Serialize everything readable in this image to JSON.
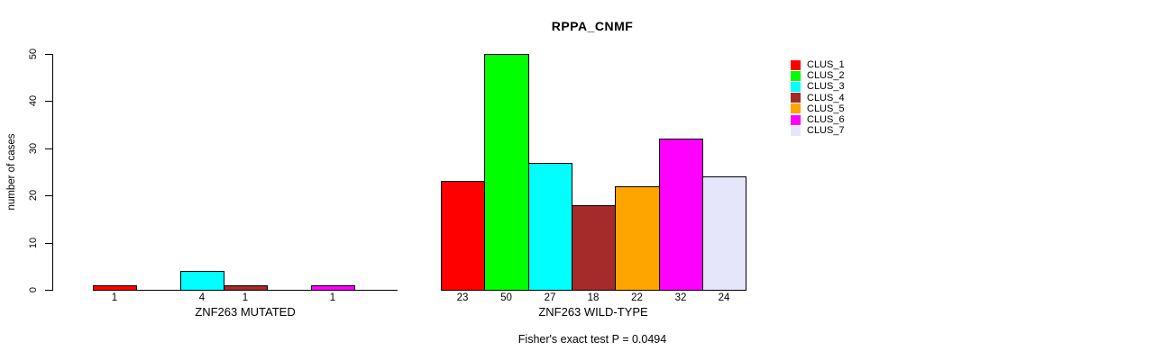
{
  "chart_data": {
    "type": "bar",
    "title": "RPPA_CNMF",
    "ylabel": "number of cases",
    "ylim": [
      0,
      50
    ],
    "yticks": [
      0,
      10,
      20,
      30,
      40,
      50
    ],
    "grid": false,
    "legend_position": "right-top",
    "clusters": [
      {
        "name": "CLUS_1",
        "color": "#FF0000"
      },
      {
        "name": "CLUS_2",
        "color": "#00FF00"
      },
      {
        "name": "CLUS_3",
        "color": "#00FFFF"
      },
      {
        "name": "CLUS_4",
        "color": "#A52A2A"
      },
      {
        "name": "CLUS_5",
        "color": "#FFA500"
      },
      {
        "name": "CLUS_6",
        "color": "#FF00FF"
      },
      {
        "name": "CLUS_7",
        "color": "#E6E6FA"
      }
    ],
    "groups": [
      {
        "label": "ZNF263 MUTATED",
        "values": [
          1,
          0,
          4,
          1,
          0,
          1,
          0
        ]
      },
      {
        "label": "ZNF263 WILD-TYPE",
        "values": [
          23,
          50,
          27,
          18,
          22,
          32,
          24
        ]
      }
    ],
    "annotation": "Fisher's exact test P = 0.0494"
  }
}
